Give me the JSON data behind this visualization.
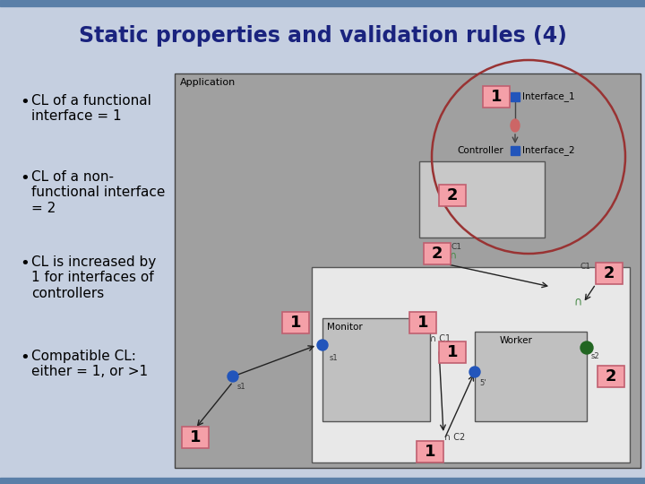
{
  "title": "Static properties and validation rules (4)",
  "title_fontsize": 17,
  "title_color": "#1a237e",
  "slide_bg": "#c5cfe0",
  "top_bar_color": "#5a7fa8",
  "bottom_bar_color": "#5a7fa8",
  "bullet_points": [
    "CL of a functional\ninterface = 1",
    "CL of a non-\nfunctional interface\n= 2",
    "CL is increased by\n1 for interfaces of\ncontrollers",
    "Compatible CL:\neither = 1, or >1"
  ],
  "bullet_fontsize": 11,
  "number_box_color": "#f4a0a8",
  "number_box_border": "#c06070",
  "diag_outer_bg": "#a0a0a0",
  "diag_inner_bg": "#c8c8c8",
  "white_bg": "#f0f0f0",
  "component_bg": "#c0c0c0",
  "blue_dot_color": "#2255bb",
  "green_dot_color": "#226622",
  "pink_connector_color": "#cc6666",
  "circle_color": "#993333",
  "connector_color": "#448844",
  "text_color": "#000000",
  "label_color": "#333333"
}
